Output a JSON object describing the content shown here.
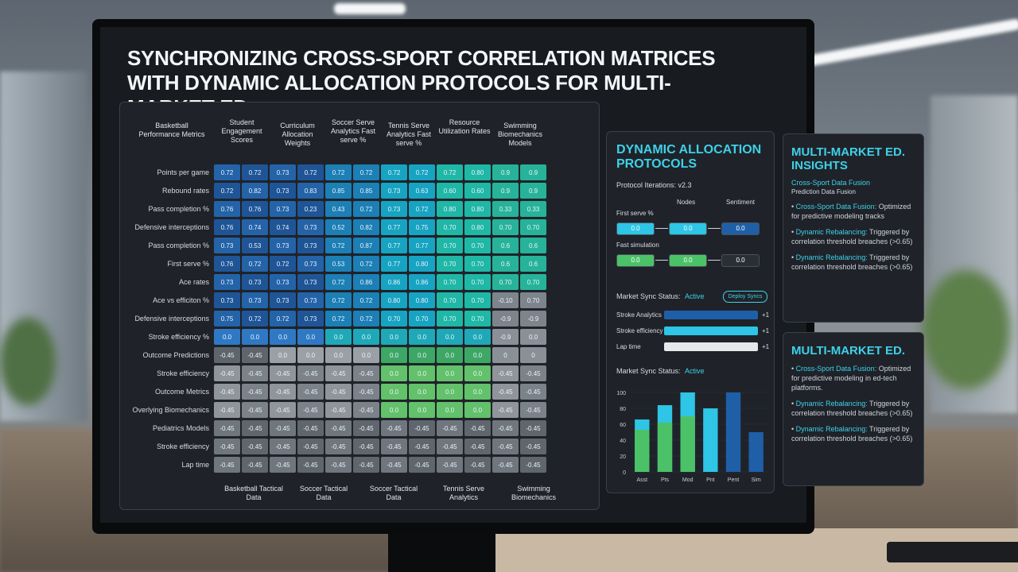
{
  "title": "SYNCHRONIZING CROSS-SPORT CORRELATION MATRICES WITH DYNAMIC ALLOCATION PROTOCOLS FOR MULTI-MARKET ED.",
  "matrix": {
    "corner_header": "Basketball Performance Metrics",
    "column_groups": [
      "Student Engagement Scores",
      "Curriculum Allocation Weights",
      "Soccer Serve Analytics Fast serve %",
      "Tennis Serve Analytics Fast serve %",
      "Resource Utilization Rates",
      "Swimming Biomechanics Models"
    ],
    "row_labels": [
      "Points per game",
      "Rebound rates",
      "Pass completion %",
      "Defensive interceptions",
      "Pass completion %",
      "First serve %",
      "Ace rates",
      "Ace vs efficiton %",
      "Defensive interceptions",
      "Stroke efficiency %",
      "Outcome Predictions",
      "Stroke efficiency",
      "Outcome Metrics",
      "Overlying Biomechanics",
      "Pediatrics Models",
      "Stroke efficiency",
      "Lap time"
    ],
    "rows": [
      [
        "0.72",
        "0.72",
        "0.73",
        "0.72",
        "0.72",
        "0.72",
        "0.72",
        "0.72",
        "0.72",
        "0.80",
        "0.9",
        "0.9"
      ],
      [
        "0.72",
        "0.82",
        "0.73",
        "0.83",
        "0.85",
        "0.85",
        "0.73",
        "0.63",
        "0.60",
        "0.60",
        "0.9",
        "0.9"
      ],
      [
        "0.76",
        "0.76",
        "0.73",
        "0.23",
        "0.43",
        "0.72",
        "0.73",
        "0.72",
        "0.80",
        "0.80",
        "0.33",
        "0.33"
      ],
      [
        "0.76",
        "0.74",
        "0.74",
        "0.73",
        "0.52",
        "0.82",
        "0.77",
        "0.75",
        "0.70",
        "0.80",
        "0.70",
        "0.70"
      ],
      [
        "0.73",
        "0.53",
        "0.73",
        "0.73",
        "0.72",
        "0.87",
        "0.77",
        "0.77",
        "0.70",
        "0.70",
        "0.6",
        "0.6"
      ],
      [
        "0.76",
        "0.72",
        "0.72",
        "0.73",
        "0.53",
        "0.72",
        "0.77",
        "0.80",
        "0.70",
        "0.70",
        "0.6",
        "0.6"
      ],
      [
        "0.73",
        "0.73",
        "0.73",
        "0.73",
        "0.72",
        "0.86",
        "0.86",
        "0.86",
        "0.70",
        "0.70",
        "0.70",
        "0.70"
      ],
      [
        "0.73",
        "0.73",
        "0.73",
        "0.73",
        "0.72",
        "0.72",
        "0.80",
        "0.80",
        "0.70",
        "0.70",
        "-0.10",
        "0.70"
      ],
      [
        "0.75",
        "0.72",
        "0.72",
        "0.73",
        "0.72",
        "0.72",
        "0.70",
        "0.70",
        "0.70",
        "0.70",
        "-0.9",
        "-0.9"
      ],
      [
        "0.0",
        "0.0",
        "0.0",
        "0.0",
        "0.0",
        "0.0",
        "0.0",
        "0.0",
        "0.0",
        "0.0",
        "-0.9",
        "0.0"
      ],
      [
        "-0.45",
        "-0.45",
        "0.0",
        "0.0",
        "0.0",
        "0.0",
        "0.0",
        "0.0",
        "0.0",
        "0.0",
        "0",
        "0"
      ],
      [
        "-0.45",
        "-0.45",
        "-0.45",
        "-0.45",
        "-0.45",
        "-0.45",
        "0.0",
        "0.0",
        "0.0",
        "0.0",
        "-0.45",
        "-0.45"
      ],
      [
        "-0.45",
        "-0.45",
        "-0.45",
        "-0.45",
        "-0.45",
        "-0.45",
        "0.0",
        "0.0",
        "0.0",
        "0.0",
        "-0.45",
        "-0.45"
      ],
      [
        "-0.45",
        "-0.45",
        "-0.45",
        "-0.45",
        "-0.45",
        "-0.45",
        "0.0",
        "0.0",
        "0.0",
        "0.0",
        "-0.45",
        "-0.45"
      ],
      [
        "-0.45",
        "-0.45",
        "-0.45",
        "-0.45",
        "-0.45",
        "-0.45",
        "-0.45",
        "-0.45",
        "-0.45",
        "-0.45",
        "-0.45",
        "-0.45"
      ],
      [
        "-0.45",
        "-0.45",
        "-0.45",
        "-0.45",
        "-0.45",
        "-0.45",
        "-0.45",
        "-0.45",
        "-0.45",
        "-0.45",
        "-0.45",
        "-0.45"
      ],
      [
        "-0.45",
        "-0.45",
        "-0.45",
        "-0.45",
        "-0.45",
        "-0.45",
        "-0.45",
        "-0.45",
        "-0.45",
        "-0.45",
        "-0.45",
        "-0.45"
      ]
    ],
    "footer_labels": [
      "Basketball Tactical Data",
      "Soccer Tactical Data",
      "Soccer Tactical Data",
      "Tennis Serve Analytics",
      "Swimming Biomechanics"
    ]
  },
  "allocation": {
    "title": "DYNAMIC ALLOCATION PROTOCOLS",
    "iteration": "Protocol Iterations: v2.3",
    "flow": {
      "headers": [
        "Nodes",
        "Sentiment"
      ],
      "row_labels": [
        "First serve %",
        "Fast simulation"
      ],
      "boxes": [
        [
          "0.0",
          "0.0",
          "0.0"
        ],
        [
          "0.0",
          "0.0",
          "0.0"
        ]
      ]
    },
    "sync": {
      "label": "Market Sync Status:",
      "state": "Active",
      "button": "Deploy Syncs",
      "bars": [
        {
          "label": "Stroke Analytics",
          "delta": "+1"
        },
        {
          "label": "Stroke efficiency",
          "delta": "+1"
        },
        {
          "label": "Lap time",
          "delta": "+1"
        }
      ]
    },
    "chart": {
      "type": "bar",
      "label": "Market Sync Status:",
      "state": "Active",
      "categories": [
        "Asst",
        "Pts",
        "Mod",
        "Pnt",
        "Pent",
        "Sim"
      ],
      "ylim": [
        0,
        100
      ],
      "yticks": [
        0,
        20,
        40,
        60,
        80,
        100
      ],
      "series": [
        {
          "colors": [
            "#2ec5e6",
            "#2ec5e6",
            "#2ec5e6",
            "#2ec5e6",
            "#1f5fa8",
            "#1f5fa8"
          ],
          "values": [
            66,
            84,
            100,
            80,
            100,
            50
          ]
        },
        {
          "colors": [
            "#4cc268",
            "#4cc268",
            "#4cc268",
            "#4cc268",
            "#4cc268",
            "#4cc268"
          ],
          "values": [
            53,
            62,
            70,
            null,
            null,
            null
          ]
        }
      ]
    }
  },
  "insights": {
    "title": "MULTI-MARKET ED. INSIGHTS",
    "subtitle": "Cross-Sport Data Fusion",
    "caption": "Prediction Data Fusion",
    "bullets": [
      {
        "label": "Cross-Sport Data Fusion:",
        "text": "Optimized for predictive modeling tracks"
      },
      {
        "label": "Dynamic Rebalancing:",
        "text": "Triggered by correlation threshold breaches (>0.65)"
      },
      {
        "label": "Dynamic Rebalancing:",
        "text": "Triggered by correlation threshold breaches (>0.65)"
      }
    ]
  },
  "summary": {
    "title": "MULTI-MARKET ED.",
    "bullets": [
      {
        "label": "Cross-Sport Data Fusion:",
        "text": "Optimized for predictive modeling in ed-tech platforms."
      },
      {
        "label": "Dynamic Rebalancing:",
        "text": "Triggered by correlation threshold breaches (>0.65)"
      },
      {
        "label": "Dynamic Rebalancing:",
        "text": "Triggered by correlation threshold breaches (>0.65)"
      }
    ]
  }
}
